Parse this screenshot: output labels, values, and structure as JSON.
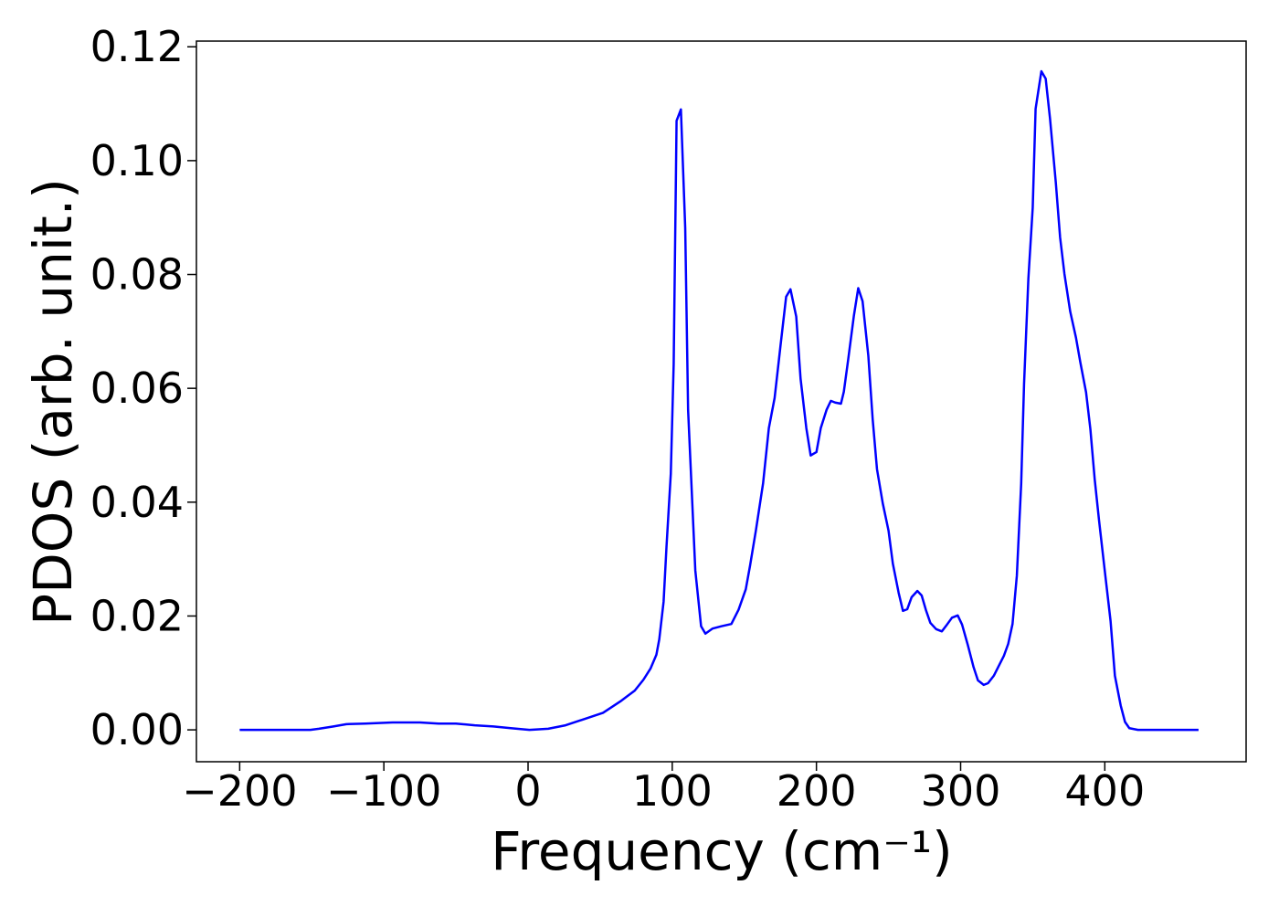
{
  "chart_data": {
    "type": "line",
    "x_label": "Frequency (cm⁻¹)",
    "y_label": "PDOS (arb. unit.)",
    "xlim": [
      -230,
      498
    ],
    "ylim": [
      -0.0056,
      0.121
    ],
    "xticks": [
      {
        "value": -200,
        "label": "−200"
      },
      {
        "value": -100,
        "label": "−100"
      },
      0,
      100,
      200,
      300,
      400
    ],
    "yticks": [
      {
        "value": 0,
        "label": "0.00"
      },
      {
        "value": 0.02,
        "label": "0.02"
      },
      {
        "value": 0.04,
        "label": "0.04"
      },
      {
        "value": 0.06,
        "label": "0.06"
      },
      {
        "value": 0.08,
        "label": "0.08"
      },
      {
        "value": 0.1,
        "label": "0.10"
      },
      {
        "value": 0.12,
        "label": "0.12"
      }
    ],
    "x": [
      -200,
      -151,
      -145,
      -135,
      -126,
      -113,
      -94,
      -75,
      -62,
      -50,
      -37,
      -24,
      -12,
      1,
      14,
      26,
      39,
      52,
      64,
      74,
      80,
      85,
      89,
      91,
      94,
      96,
      99,
      101,
      103,
      106,
      109,
      111,
      116,
      120,
      123,
      128,
      134,
      141,
      146,
      151,
      154,
      158,
      163,
      167,
      171,
      175,
      179,
      182,
      186,
      189,
      193,
      196,
      200,
      203,
      207,
      210,
      213,
      217,
      219,
      222,
      226,
      229,
      232,
      236,
      239,
      242,
      246,
      250,
      253,
      257,
      260,
      263,
      266,
      270,
      273,
      276,
      279,
      283,
      287,
      290,
      294,
      298,
      301,
      305,
      309,
      312,
      316,
      319,
      323,
      326,
      330,
      333,
      336,
      339,
      342,
      344,
      347,
      350,
      352,
      356,
      359,
      362,
      366,
      369,
      372,
      376,
      380,
      383,
      387,
      390,
      393,
      396,
      400,
      404,
      407,
      411,
      414,
      417,
      423,
      465
    ],
    "series": [
      {
        "color": "#0000ff",
        "values": [
          0,
          0,
          0.0002,
          0.0006,
          0.001,
          0.0011,
          0.0013,
          0.0013,
          0.0011,
          0.0011,
          0.0008,
          0.0006,
          0.0003,
          0,
          0.0002,
          0.0008,
          0.0019,
          0.003,
          0.005,
          0.0069,
          0.0088,
          0.0108,
          0.0132,
          0.0159,
          0.0225,
          0.0321,
          0.045,
          0.0643,
          0.107,
          0.109,
          0.0882,
          0.0562,
          0.028,
          0.0182,
          0.0169,
          0.0178,
          0.0182,
          0.0186,
          0.0211,
          0.0247,
          0.0289,
          0.035,
          0.0433,
          0.053,
          0.0583,
          0.0673,
          0.0761,
          0.0774,
          0.0726,
          0.0617,
          0.053,
          0.0482,
          0.0488,
          0.053,
          0.0562,
          0.0578,
          0.0575,
          0.0573,
          0.0594,
          0.065,
          0.0728,
          0.0776,
          0.0753,
          0.0657,
          0.0546,
          0.0458,
          0.0398,
          0.035,
          0.0292,
          0.0241,
          0.0209,
          0.0212,
          0.0233,
          0.0244,
          0.0236,
          0.021,
          0.0188,
          0.0177,
          0.0173,
          0.0183,
          0.0197,
          0.0201,
          0.0185,
          0.0149,
          0.011,
          0.0087,
          0.0079,
          0.0082,
          0.0095,
          0.011,
          0.013,
          0.0151,
          0.0186,
          0.0271,
          0.0432,
          0.0608,
          0.0793,
          0.0917,
          0.1091,
          0.1157,
          0.1144,
          0.1074,
          0.0962,
          0.0865,
          0.0801,
          0.0735,
          0.0689,
          0.0646,
          0.0593,
          0.0528,
          0.044,
          0.0368,
          0.0279,
          0.0191,
          0.0095,
          0.0043,
          0.0014,
          0.0003,
          0,
          0
        ]
      }
    ]
  }
}
